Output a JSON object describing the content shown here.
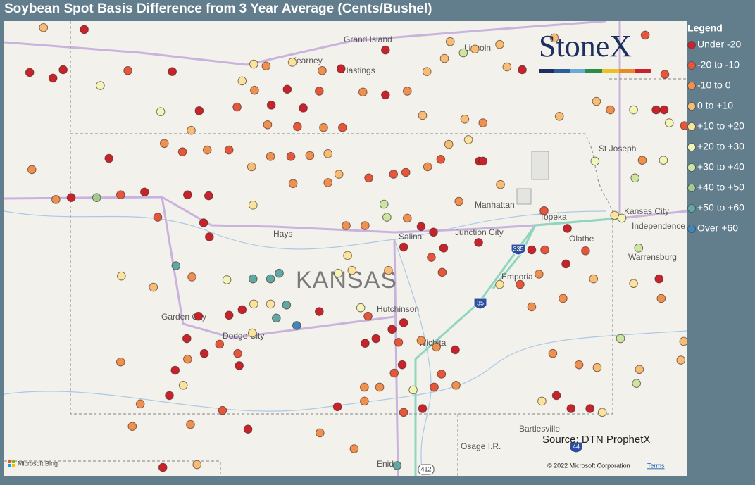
{
  "header": {
    "title": "Soybean Spot Basis Difference from 3 Year Average (Cents/Bushel)"
  },
  "map": {
    "lon_range": [
      -102.96,
      -93.58
    ],
    "lat_range": [
      36.33,
      41.2
    ],
    "places": [
      "Grand Island",
      "Kearney",
      "Hastings",
      "Lincoln",
      "St Joseph",
      "Manhattan",
      "Topeka",
      "Kansas City",
      "Independence",
      "Hays",
      "Salina",
      "Junction City",
      "Olathe",
      "Warrensburg",
      "Emporia",
      "Garden City",
      "Dodge City",
      "Hutchinson",
      "Wichita",
      "Bartlesville",
      "Osage I.R.",
      "Enid"
    ],
    "state_label": "KANSAS",
    "highway_shields": [
      "335",
      "35",
      "44",
      "412"
    ],
    "logo": "StoneX",
    "source": "Source: DTN ProphetX",
    "attribution": "Microsoft Bing",
    "copyright": "© 2022 Microsoft Corporation",
    "terms": "Terms"
  },
  "legend": {
    "title": "Legend",
    "items": [
      {
        "label": "Under -20",
        "color": "#c8222c",
        "points": [
          [
            -102.04,
            39.31
          ],
          [
            -101.03,
            39.37
          ],
          [
            -100.44,
            39.34
          ],
          [
            -100.15,
            39.33
          ],
          [
            -101.52,
            39.73
          ],
          [
            -100.22,
            39.04
          ],
          [
            -100.14,
            38.89
          ],
          [
            -99.87,
            38.05
          ],
          [
            -99.69,
            38.11
          ],
          [
            -98.63,
            38.09
          ],
          [
            -100.29,
            38.04
          ],
          [
            -100.45,
            37.8
          ],
          [
            -100.21,
            37.64
          ],
          [
            -99.73,
            37.51
          ],
          [
            -100.61,
            37.46
          ],
          [
            -100.69,
            37.19
          ],
          [
            -99.61,
            36.83
          ],
          [
            -100.78,
            36.42
          ],
          [
            -97.23,
            39.0
          ],
          [
            -97.06,
            38.94
          ],
          [
            -96.92,
            38.77
          ],
          [
            -97.47,
            38.78
          ],
          [
            -97.63,
            37.9
          ],
          [
            -97.47,
            37.97
          ],
          [
            -97.85,
            37.8
          ],
          [
            -98.0,
            37.75
          ],
          [
            -97.49,
            37.52
          ],
          [
            -96.76,
            37.68
          ],
          [
            -98.38,
            37.07
          ],
          [
            -97.21,
            37.05
          ],
          [
            -96.44,
            38.83
          ],
          [
            -96.43,
            39.7
          ],
          [
            -95.22,
            38.98
          ],
          [
            -95.71,
            38.75
          ],
          [
            -95.24,
            38.6
          ],
          [
            -95.37,
            37.19
          ],
          [
            -95.17,
            37.05
          ],
          [
            -94.91,
            37.05
          ],
          [
            -93.96,
            38.44
          ],
          [
            -94.0,
            40.25
          ],
          [
            -93.89,
            40.25
          ],
          [
            -95.84,
            40.68
          ],
          [
            -97.72,
            40.89
          ],
          [
            -98.33,
            40.69
          ],
          [
            -97.72,
            40.41
          ],
          [
            -96.38,
            39.7
          ],
          [
            -98.85,
            40.27
          ],
          [
            -99.07,
            40.47
          ],
          [
            -99.29,
            40.3
          ],
          [
            -100.65,
            40.66
          ],
          [
            -101.86,
            41.11
          ],
          [
            -102.15,
            40.68
          ],
          [
            -102.61,
            40.65
          ],
          [
            -102.29,
            40.59
          ],
          [
            -100.28,
            40.24
          ]
        ]
      },
      {
        "label": "-20 to -10",
        "color": "#e5563b",
        "points": [
          [
            -101.36,
            39.34
          ],
          [
            -100.51,
            39.8
          ],
          [
            -99.87,
            39.82
          ],
          [
            -100.85,
            39.1
          ],
          [
            -100.0,
            37.74
          ],
          [
            -99.75,
            37.64
          ],
          [
            -99.96,
            37.03
          ],
          [
            -99.02,
            39.75
          ],
          [
            -97.09,
            38.67
          ],
          [
            -96.94,
            38.51
          ],
          [
            -97.96,
            38.04
          ],
          [
            -97.54,
            37.76
          ],
          [
            -97.6,
            37.43
          ],
          [
            -96.95,
            37.42
          ],
          [
            -97.47,
            37.01
          ],
          [
            -97.05,
            37.28
          ],
          [
            -95.54,
            39.17
          ],
          [
            -95.53,
            38.75
          ],
          [
            -95.87,
            38.38
          ],
          [
            -94.97,
            38.74
          ],
          [
            -93.61,
            40.08
          ],
          [
            -96.96,
            39.72
          ],
          [
            -97.61,
            39.56
          ],
          [
            -97.44,
            39.58
          ],
          [
            -97.95,
            39.52
          ],
          [
            -99.76,
            40.28
          ],
          [
            -101.26,
            40.67
          ],
          [
            -98.93,
            40.07
          ],
          [
            -98.31,
            40.06
          ],
          [
            -98.63,
            40.45
          ],
          [
            -94.15,
            41.05
          ],
          [
            -93.88,
            40.63
          ]
        ]
      },
      {
        "label": "-10 to 0",
        "color": "#f0904f",
        "points": [
          [
            -102.25,
            39.29
          ],
          [
            -102.58,
            39.61
          ],
          [
            -100.76,
            39.89
          ],
          [
            -100.17,
            39.82
          ],
          [
            -100.38,
            38.46
          ],
          [
            -100.44,
            37.58
          ],
          [
            -101.36,
            37.55
          ],
          [
            -101.09,
            37.1
          ],
          [
            -101.2,
            36.86
          ],
          [
            -100.4,
            36.88
          ],
          [
            -99.3,
            39.75
          ],
          [
            -98.76,
            39.76
          ],
          [
            -98.51,
            39.47
          ],
          [
            -98.99,
            39.46
          ],
          [
            -98.26,
            39.01
          ],
          [
            -98.0,
            39.01
          ],
          [
            -97.42,
            39.09
          ],
          [
            -97.23,
            37.78
          ],
          [
            -97.02,
            37.71
          ],
          [
            -96.75,
            37.3
          ],
          [
            -98.01,
            37.28
          ],
          [
            -97.8,
            37.28
          ],
          [
            -98.01,
            37.13
          ],
          [
            -98.62,
            36.79
          ],
          [
            -98.15,
            36.62
          ],
          [
            -95.61,
            38.49
          ],
          [
            -95.28,
            38.23
          ],
          [
            -95.71,
            38.14
          ],
          [
            -95.42,
            37.64
          ],
          [
            -95.06,
            37.52
          ],
          [
            -93.93,
            38.23
          ],
          [
            -94.19,
            39.71
          ],
          [
            -94.63,
            40.25
          ],
          [
            -98.59,
            40.67
          ],
          [
            -98.03,
            40.44
          ],
          [
            -97.42,
            40.45
          ],
          [
            -96.38,
            40.11
          ],
          [
            -97.14,
            39.64
          ],
          [
            -96.71,
            39.27
          ],
          [
            -99.52,
            40.46
          ],
          [
            -99.34,
            40.09
          ],
          [
            -98.57,
            40.06
          ],
          [
            -99.36,
            40.72
          ]
        ]
      },
      {
        "label": "0 to +10",
        "color": "#f7bd74",
        "points": [
          [
            -100.91,
            38.35
          ],
          [
            -100.31,
            36.45
          ],
          [
            -99.56,
            39.64
          ],
          [
            -98.51,
            39.78
          ],
          [
            -98.36,
            39.56
          ],
          [
            -97.68,
            38.53
          ],
          [
            -96.14,
            39.45
          ],
          [
            -94.86,
            38.44
          ],
          [
            -94.81,
            37.49
          ],
          [
            -94.23,
            37.47
          ],
          [
            -93.62,
            37.77
          ],
          [
            -93.66,
            37.57
          ],
          [
            -94.82,
            40.34
          ],
          [
            -95.33,
            40.18
          ],
          [
            -96.05,
            40.71
          ],
          [
            -96.15,
            40.95
          ],
          [
            -96.49,
            40.9
          ],
          [
            -96.83,
            40.98
          ],
          [
            -97.15,
            40.66
          ],
          [
            -96.91,
            40.8
          ],
          [
            -97.21,
            40.19
          ],
          [
            -96.63,
            40.15
          ],
          [
            -96.85,
            39.88
          ],
          [
            -102.42,
            41.13
          ],
          [
            -100.39,
            40.03
          ],
          [
            -95.4,
            41.02
          ]
        ]
      },
      {
        "label": "+10 to +20",
        "color": "#fae49c",
        "points": [
          [
            -101.35,
            38.47
          ],
          [
            -99.53,
            38.17
          ],
          [
            -99.3,
            38.17
          ],
          [
            -99.55,
            37.86
          ],
          [
            -100.5,
            37.3
          ],
          [
            -99.54,
            39.23
          ],
          [
            -98.24,
            38.69
          ],
          [
            -98.18,
            38.53
          ],
          [
            -96.15,
            38.38
          ],
          [
            -94.74,
            37.01
          ],
          [
            -95.57,
            37.13
          ],
          [
            -94.31,
            38.39
          ],
          [
            -94.57,
            39.12
          ],
          [
            -96.58,
            39.93
          ],
          [
            -99.69,
            40.56
          ],
          [
            -99.0,
            40.76
          ],
          [
            -99.53,
            40.74
          ]
        ]
      },
      {
        "label": "+20 to +30",
        "color": "#f1f5b8",
        "points": [
          [
            -99.9,
            38.43
          ],
          [
            -98.37,
            38.5
          ],
          [
            -98.06,
            38.13
          ],
          [
            -97.34,
            37.25
          ],
          [
            -94.84,
            39.7
          ],
          [
            -93.9,
            39.71
          ],
          [
            -94.47,
            39.09
          ],
          [
            -93.82,
            40.11
          ],
          [
            -94.31,
            40.25
          ],
          [
            -101.64,
            40.51
          ],
          [
            -100.81,
            40.23
          ]
        ]
      },
      {
        "label": "+30 to +40",
        "color": "#cbe6a3",
        "points": [
          [
            -97.74,
            39.24
          ],
          [
            -97.7,
            39.1
          ],
          [
            -94.24,
            38.77
          ],
          [
            -94.29,
            39.52
          ],
          [
            -94.49,
            37.8
          ],
          [
            -94.27,
            37.32
          ],
          [
            -96.65,
            40.86
          ]
        ]
      },
      {
        "label": "+40 to +50",
        "color": "#9fcb8f",
        "points": [
          [
            -101.69,
            39.31
          ]
        ]
      },
      {
        "label": "+50 to +60",
        "color": "#5fa8a3",
        "points": [
          [
            -100.6,
            38.58
          ],
          [
            -99.54,
            38.44
          ],
          [
            -99.3,
            38.44
          ],
          [
            -99.18,
            38.5
          ],
          [
            -99.08,
            38.16
          ],
          [
            -99.22,
            38.02
          ],
          [
            -97.56,
            36.44
          ]
        ]
      },
      {
        "label": "Over +60",
        "color": "#3f87b8",
        "points": [
          [
            -98.94,
            37.94
          ]
        ]
      }
    ]
  }
}
